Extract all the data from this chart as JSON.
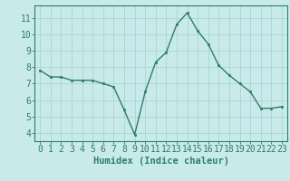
{
  "x": [
    0,
    1,
    2,
    3,
    4,
    5,
    6,
    7,
    8,
    9,
    10,
    11,
    12,
    13,
    14,
    15,
    16,
    17,
    18,
    19,
    20,
    21,
    22,
    23
  ],
  "y": [
    7.8,
    7.4,
    7.4,
    7.2,
    7.2,
    7.2,
    7.0,
    6.8,
    5.4,
    3.9,
    6.5,
    8.3,
    8.9,
    10.6,
    11.3,
    10.2,
    9.4,
    8.1,
    7.5,
    7.0,
    6.5,
    5.5,
    5.5,
    5.6
  ],
  "xlabel": "Humidex (Indice chaleur)",
  "ylabel_ticks": [
    4,
    5,
    6,
    7,
    8,
    9,
    10,
    11
  ],
  "ylim": [
    3.5,
    11.75
  ],
  "xlim": [
    -0.5,
    23.5
  ],
  "bg_color": "#c9eaea",
  "line_color": "#2d7d6e",
  "grid_color": "#aad4d4",
  "xlabel_fontsize": 7.5,
  "tick_fontsize": 7
}
